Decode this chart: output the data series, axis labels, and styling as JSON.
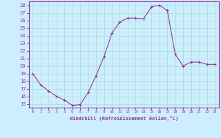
{
  "x": [
    0,
    1,
    2,
    3,
    4,
    5,
    6,
    7,
    8,
    9,
    10,
    11,
    12,
    13,
    14,
    15,
    16,
    17,
    18,
    19,
    20,
    21,
    22,
    23
  ],
  "y": [
    19.0,
    17.5,
    16.7,
    16.0,
    15.5,
    14.8,
    14.9,
    16.5,
    18.7,
    21.2,
    24.3,
    25.8,
    26.3,
    26.3,
    26.2,
    27.8,
    28.0,
    27.3,
    21.5,
    20.0,
    20.5,
    20.5,
    20.2,
    20.2
  ],
  "xlim_min": -0.5,
  "xlim_max": 23.5,
  "ylim_min": 14.5,
  "ylim_max": 28.5,
  "yticks": [
    15,
    16,
    17,
    18,
    19,
    20,
    21,
    22,
    23,
    24,
    25,
    26,
    27,
    28
  ],
  "xticks": [
    0,
    1,
    2,
    3,
    4,
    5,
    6,
    7,
    8,
    9,
    10,
    11,
    12,
    13,
    14,
    15,
    16,
    17,
    18,
    19,
    20,
    21,
    22,
    23
  ],
  "xlabel": "Windchill (Refroidissement éolien,°C)",
  "line_color": "#993399",
  "marker": "+",
  "bg_color": "#cceeff",
  "grid_color": "#aaddcc",
  "label_color": "#993399",
  "tick_color": "#993399",
  "spine_color": "#993399"
}
